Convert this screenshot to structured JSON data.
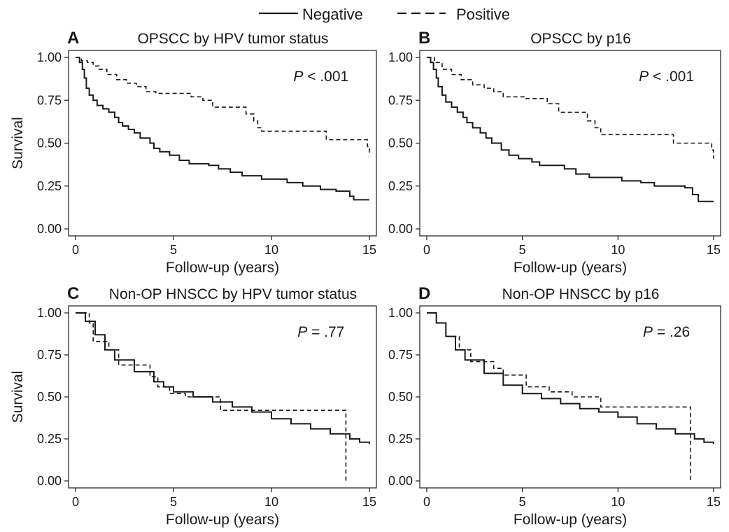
{
  "legend": {
    "items": [
      {
        "label": "Negative",
        "style": "solid"
      },
      {
        "label": "Positive",
        "style": "dashed"
      }
    ],
    "placement": "top-center"
  },
  "x_ticks": [
    "0",
    "5",
    "10",
    "15"
  ],
  "y_ticks": [
    "0.00",
    "0.25",
    "0.50",
    "0.75",
    "1.00"
  ],
  "chart_data": [
    {
      "type": "line",
      "step": true,
      "panel_letter": "A",
      "title": "OPSCC by HPV tumor status",
      "xlabel": "Follow-up (years)",
      "ylabel": "Survival",
      "xlim": [
        0,
        15
      ],
      "ylim": [
        0,
        1
      ],
      "annotation": {
        "italic": "P",
        "rest": " < .001"
      },
      "grid": false,
      "series": [
        {
          "name": "Negative",
          "points": [
            [
              0,
              1.0
            ],
            [
              0.2,
              0.97
            ],
            [
              0.35,
              0.93
            ],
            [
              0.45,
              0.88
            ],
            [
              0.55,
              0.82
            ],
            [
              0.7,
              0.78
            ],
            [
              0.9,
              0.75
            ],
            [
              1.1,
              0.72
            ],
            [
              1.4,
              0.7
            ],
            [
              1.7,
              0.68
            ],
            [
              2.0,
              0.65
            ],
            [
              2.2,
              0.62
            ],
            [
              2.4,
              0.6
            ],
            [
              2.7,
              0.58
            ],
            [
              3.0,
              0.56
            ],
            [
              3.3,
              0.53
            ],
            [
              3.8,
              0.5
            ],
            [
              4.0,
              0.47
            ],
            [
              4.3,
              0.45
            ],
            [
              4.8,
              0.43
            ],
            [
              5.3,
              0.4
            ],
            [
              5.8,
              0.38
            ],
            [
              6.8,
              0.37
            ],
            [
              7.3,
              0.35
            ],
            [
              7.9,
              0.33
            ],
            [
              8.5,
              0.31
            ],
            [
              9.5,
              0.29
            ],
            [
              10.8,
              0.27
            ],
            [
              11.6,
              0.25
            ],
            [
              12.5,
              0.23
            ],
            [
              13.3,
              0.22
            ],
            [
              14.0,
              0.19
            ],
            [
              14.2,
              0.17
            ],
            [
              15.0,
              0.17
            ]
          ]
        },
        {
          "name": "Positive",
          "points": [
            [
              0,
              1.0
            ],
            [
              0.3,
              0.98
            ],
            [
              0.6,
              0.97
            ],
            [
              0.9,
              0.95
            ],
            [
              1.2,
              0.93
            ],
            [
              1.6,
              0.9
            ],
            [
              2.1,
              0.87
            ],
            [
              2.6,
              0.85
            ],
            [
              3.1,
              0.83
            ],
            [
              3.6,
              0.8
            ],
            [
              4.1,
              0.79
            ],
            [
              5.9,
              0.77
            ],
            [
              6.5,
              0.75
            ],
            [
              7.0,
              0.71
            ],
            [
              8.7,
              0.67
            ],
            [
              9.1,
              0.63
            ],
            [
              9.3,
              0.59
            ],
            [
              9.5,
              0.57
            ],
            [
              12.8,
              0.52
            ],
            [
              14.9,
              0.48
            ],
            [
              15.0,
              0.43
            ]
          ]
        }
      ]
    },
    {
      "type": "line",
      "step": true,
      "panel_letter": "B",
      "title": "OPSCC by p16",
      "xlabel": "Follow-up (years)",
      "ylabel": "",
      "xlim": [
        0,
        15
      ],
      "ylim": [
        0,
        1
      ],
      "annotation": {
        "italic": "P",
        "rest": " < .001"
      },
      "grid": false,
      "series": [
        {
          "name": "Negative",
          "points": [
            [
              0,
              1.0
            ],
            [
              0.2,
              0.97
            ],
            [
              0.35,
              0.93
            ],
            [
              0.5,
              0.88
            ],
            [
              0.6,
              0.83
            ],
            [
              0.8,
              0.78
            ],
            [
              1.0,
              0.74
            ],
            [
              1.3,
              0.71
            ],
            [
              1.6,
              0.68
            ],
            [
              1.9,
              0.65
            ],
            [
              2.1,
              0.62
            ],
            [
              2.4,
              0.59
            ],
            [
              2.8,
              0.56
            ],
            [
              3.1,
              0.53
            ],
            [
              3.4,
              0.5
            ],
            [
              3.9,
              0.46
            ],
            [
              4.3,
              0.43
            ],
            [
              4.8,
              0.41
            ],
            [
              5.5,
              0.39
            ],
            [
              5.9,
              0.37
            ],
            [
              7.2,
              0.35
            ],
            [
              7.8,
              0.32
            ],
            [
              8.5,
              0.3
            ],
            [
              10.2,
              0.28
            ],
            [
              11.2,
              0.27
            ],
            [
              11.9,
              0.25
            ],
            [
              13.5,
              0.24
            ],
            [
              13.9,
              0.2
            ],
            [
              14.2,
              0.16
            ],
            [
              15.0,
              0.16
            ]
          ]
        },
        {
          "name": "Positive",
          "points": [
            [
              0,
              1.0
            ],
            [
              0.4,
              0.97
            ],
            [
              0.8,
              0.93
            ],
            [
              1.3,
              0.9
            ],
            [
              1.8,
              0.87
            ],
            [
              2.4,
              0.84
            ],
            [
              3.0,
              0.82
            ],
            [
              3.5,
              0.8
            ],
            [
              4.0,
              0.77
            ],
            [
              5.2,
              0.76
            ],
            [
              6.3,
              0.73
            ],
            [
              6.9,
              0.68
            ],
            [
              8.4,
              0.63
            ],
            [
              8.8,
              0.59
            ],
            [
              9.1,
              0.55
            ],
            [
              12.9,
              0.5
            ],
            [
              14.9,
              0.46
            ],
            [
              15.0,
              0.41
            ]
          ]
        }
      ]
    },
    {
      "type": "line",
      "step": true,
      "panel_letter": "C",
      "title": "Non-OP HNSCC by HPV tumor status",
      "xlabel": "Follow-up (years)",
      "ylabel": "Survival",
      "xlim": [
        0,
        15
      ],
      "ylim": [
        0,
        1
      ],
      "annotation": {
        "italic": "P",
        "rest": " = .77"
      },
      "grid": false,
      "series": [
        {
          "name": "Negative",
          "points": [
            [
              0,
              1.0
            ],
            [
              0.5,
              0.95
            ],
            [
              1.0,
              0.87
            ],
            [
              1.5,
              0.78
            ],
            [
              2.0,
              0.72
            ],
            [
              3.0,
              0.65
            ],
            [
              4.0,
              0.59
            ],
            [
              4.5,
              0.56
            ],
            [
              5.0,
              0.53
            ],
            [
              6.0,
              0.5
            ],
            [
              7.0,
              0.47
            ],
            [
              8.0,
              0.44
            ],
            [
              9.0,
              0.41
            ],
            [
              10.0,
              0.37
            ],
            [
              11.0,
              0.34
            ],
            [
              12.0,
              0.31
            ],
            [
              13.0,
              0.28
            ],
            [
              14.0,
              0.25
            ],
            [
              14.5,
              0.23
            ],
            [
              15.0,
              0.22
            ]
          ]
        },
        {
          "name": "Positive",
          "points": [
            [
              0,
              1.0
            ],
            [
              0.7,
              0.94
            ],
            [
              0.9,
              0.83
            ],
            [
              1.7,
              0.78
            ],
            [
              2.2,
              0.69
            ],
            [
              3.8,
              0.62
            ],
            [
              4.2,
              0.56
            ],
            [
              4.8,
              0.52
            ],
            [
              5.6,
              0.5
            ],
            [
              7.4,
              0.42
            ],
            [
              13.8,
              0.0
            ]
          ]
        }
      ]
    },
    {
      "type": "line",
      "step": true,
      "panel_letter": "D",
      "title": "Non-OP HNSCC by p16",
      "xlabel": "Follow-up (years)",
      "ylabel": "",
      "xlim": [
        0,
        15
      ],
      "ylim": [
        0,
        1
      ],
      "annotation": {
        "italic": "P",
        "rest": " = .26"
      },
      "grid": false,
      "series": [
        {
          "name": "Negative",
          "points": [
            [
              0,
              1.0
            ],
            [
              0.5,
              0.94
            ],
            [
              1.0,
              0.86
            ],
            [
              1.5,
              0.78
            ],
            [
              2.0,
              0.72
            ],
            [
              3.0,
              0.64
            ],
            [
              4.0,
              0.57
            ],
            [
              5.0,
              0.52
            ],
            [
              6.0,
              0.49
            ],
            [
              7.0,
              0.46
            ],
            [
              8.0,
              0.43
            ],
            [
              9.0,
              0.41
            ],
            [
              10.0,
              0.38
            ],
            [
              11.0,
              0.34
            ],
            [
              12.0,
              0.31
            ],
            [
              13.0,
              0.28
            ],
            [
              14.0,
              0.25
            ],
            [
              14.5,
              0.23
            ],
            [
              15.0,
              0.22
            ]
          ]
        },
        {
          "name": "Positive",
          "points": [
            [
              0,
              1.0
            ],
            [
              0.5,
              0.94
            ],
            [
              1.0,
              0.86
            ],
            [
              1.7,
              0.78
            ],
            [
              2.3,
              0.71
            ],
            [
              3.5,
              0.67
            ],
            [
              4.0,
              0.63
            ],
            [
              5.2,
              0.56
            ],
            [
              6.4,
              0.53
            ],
            [
              7.6,
              0.5
            ],
            [
              9.1,
              0.44
            ],
            [
              13.8,
              0.0
            ]
          ]
        }
      ]
    }
  ]
}
